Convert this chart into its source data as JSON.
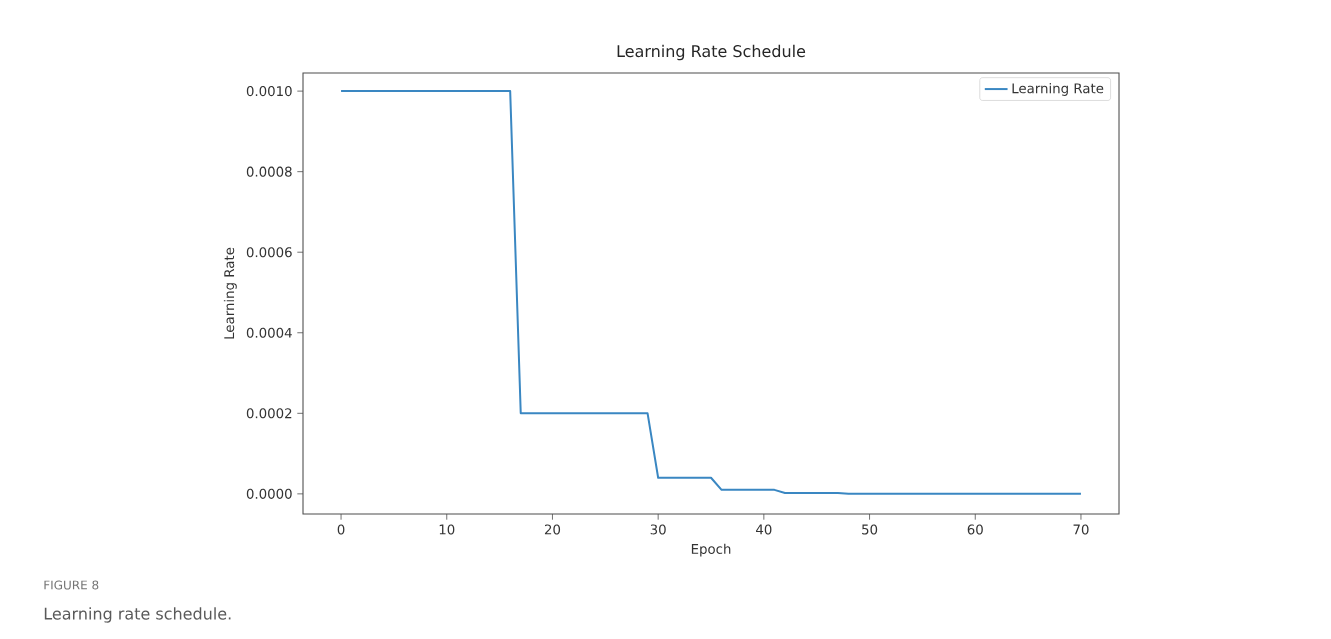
{
  "chart_data": {
    "type": "line",
    "title": "Learning Rate Schedule",
    "xlabel": "Epoch",
    "ylabel": "Learning Rate",
    "x": [
      0,
      16,
      17,
      29,
      30,
      35,
      36,
      41,
      42,
      47,
      48,
      70
    ],
    "series": [
      {
        "name": "Learning Rate",
        "color": "#3a87c2",
        "values": [
          0.001,
          0.001,
          0.0002,
          0.0002,
          4e-05,
          4e-05,
          1e-05,
          1e-05,
          2e-06,
          2e-06,
          0,
          0
        ]
      }
    ],
    "xlim": [
      -3.6,
      73.6
    ],
    "ylim": [
      -5e-05,
      0.001045
    ],
    "xticks": [
      0,
      10,
      20,
      30,
      40,
      50,
      60,
      70
    ],
    "yticks": [
      {
        "value": 0,
        "label": "0.0000"
      },
      {
        "value": 0.0002,
        "label": "0.0002"
      },
      {
        "value": 0.0004,
        "label": "0.0004"
      },
      {
        "value": 0.0006,
        "label": "0.0006"
      },
      {
        "value": 0.0008,
        "label": "0.0008"
      },
      {
        "value": 0.001,
        "label": "0.0010"
      }
    ],
    "legend": "top right",
    "marker": "none",
    "line_style": "solid",
    "grid": false,
    "annotations": [
      "FIGURE 8",
      "Learning rate schedule."
    ]
  }
}
